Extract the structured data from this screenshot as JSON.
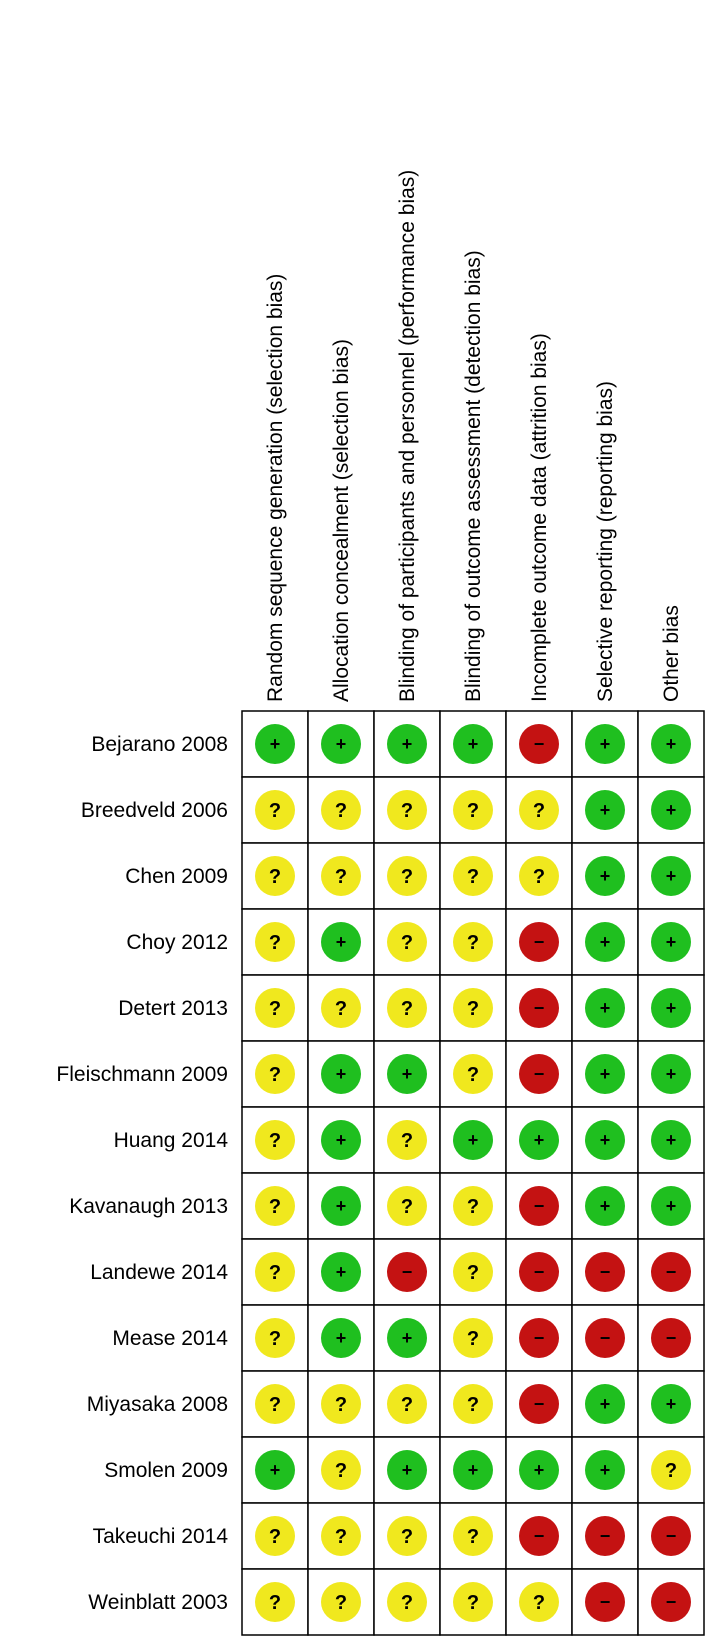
{
  "chart_data": {
    "type": "table",
    "domains": [
      "Random sequence generation (selection bias)",
      "Allocation concealment (selection bias)",
      "Blinding of participants and personnel (performance bias)",
      "Blinding of outcome assessment (detection bias)",
      "Incomplete outcome data (attrition bias)",
      "Selective reporting (reporting bias)",
      "Other bias"
    ],
    "studies": [
      "Bejarano 2008",
      "Breedveld 2006",
      "Chen 2009",
      "Choy 2012",
      "Detert 2013",
      "Fleischmann 2009",
      "Huang 2014",
      "Kavanaugh 2013",
      "Landewe 2014",
      "Mease 2014",
      "Miyasaka 2008",
      "Smolen 2009",
      "Takeuchi 2014",
      "Weinblatt 2003"
    ],
    "judgements": [
      [
        "low",
        "low",
        "low",
        "low",
        "high",
        "low",
        "low"
      ],
      [
        "unclear",
        "unclear",
        "unclear",
        "unclear",
        "unclear",
        "low",
        "low"
      ],
      [
        "unclear",
        "unclear",
        "unclear",
        "unclear",
        "unclear",
        "low",
        "low"
      ],
      [
        "unclear",
        "low",
        "unclear",
        "unclear",
        "high",
        "low",
        "low"
      ],
      [
        "unclear",
        "unclear",
        "unclear",
        "unclear",
        "high",
        "low",
        "low"
      ],
      [
        "unclear",
        "low",
        "low",
        "unclear",
        "high",
        "low",
        "low"
      ],
      [
        "unclear",
        "low",
        "unclear",
        "low",
        "low",
        "low",
        "low"
      ],
      [
        "unclear",
        "low",
        "unclear",
        "unclear",
        "high",
        "low",
        "low"
      ],
      [
        "unclear",
        "low",
        "high",
        "unclear",
        "high",
        "high",
        "high"
      ],
      [
        "unclear",
        "low",
        "low",
        "unclear",
        "high",
        "high",
        "high"
      ],
      [
        "unclear",
        "unclear",
        "unclear",
        "unclear",
        "high",
        "low",
        "low"
      ],
      [
        "low",
        "unclear",
        "low",
        "low",
        "low",
        "low",
        "unclear"
      ],
      [
        "unclear",
        "unclear",
        "unclear",
        "unclear",
        "high",
        "high",
        "high"
      ],
      [
        "unclear",
        "unclear",
        "unclear",
        "unclear",
        "unclear",
        "high",
        "high"
      ]
    ],
    "symbols": {
      "low": "+",
      "unclear": "?",
      "high": "−"
    },
    "colors": {
      "low": "#1fbf1f",
      "unclear": "#f0e81e",
      "high": "#c41212",
      "grid": "#000000"
    }
  }
}
